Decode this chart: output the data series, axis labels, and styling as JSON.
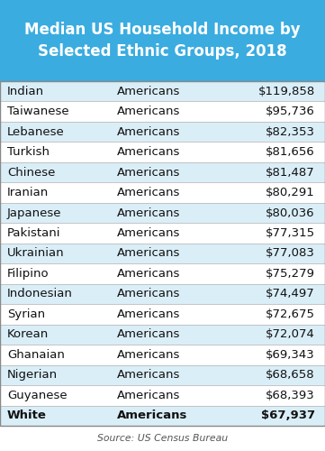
{
  "title": "Median US Household Income by\nSelected Ethnic Groups, 2018",
  "title_bg": "#3aace0",
  "title_color": "#ffffff",
  "source": "Source: US Census Bureau",
  "col1": [
    "Indian",
    "Taiwanese",
    "Lebanese",
    "Turkish",
    "Chinese",
    "Iranian",
    "Japanese",
    "Pakistani",
    "Ukrainian",
    "Filipino",
    "Indonesian",
    "Syrian",
    "Korean",
    "Ghanaian",
    "Nigerian",
    "Guyanese",
    "White"
  ],
  "col2": [
    "Americans",
    "Americans",
    "Americans",
    "Americans",
    "Americans",
    "Americans",
    "Americans",
    "Americans",
    "Americans",
    "Americans",
    "Americans",
    "Americans",
    "Americans",
    "Americans",
    "Americans",
    "Americans",
    "Americans"
  ],
  "col3": [
    "$119,858",
    "$95,736",
    "$82,353",
    "$81,656",
    "$81,487",
    "$80,291",
    "$80,036",
    "$77,315",
    "$77,083",
    "$75,279",
    "$74,497",
    "$72,675",
    "$72,074",
    "$69,343",
    "$68,658",
    "$68,393",
    "$67,937"
  ],
  "row_colors_even": "#daeef8",
  "row_colors_odd": "#ffffff",
  "border_color": "#888888",
  "line_color": "#bbbbbb",
  "text_color": "#111111",
  "font_size": 9.5,
  "title_font_size": 12.0,
  "source_font_size": 7.8,
  "figwidth": 3.61,
  "figheight": 5.0,
  "dpi": 100
}
